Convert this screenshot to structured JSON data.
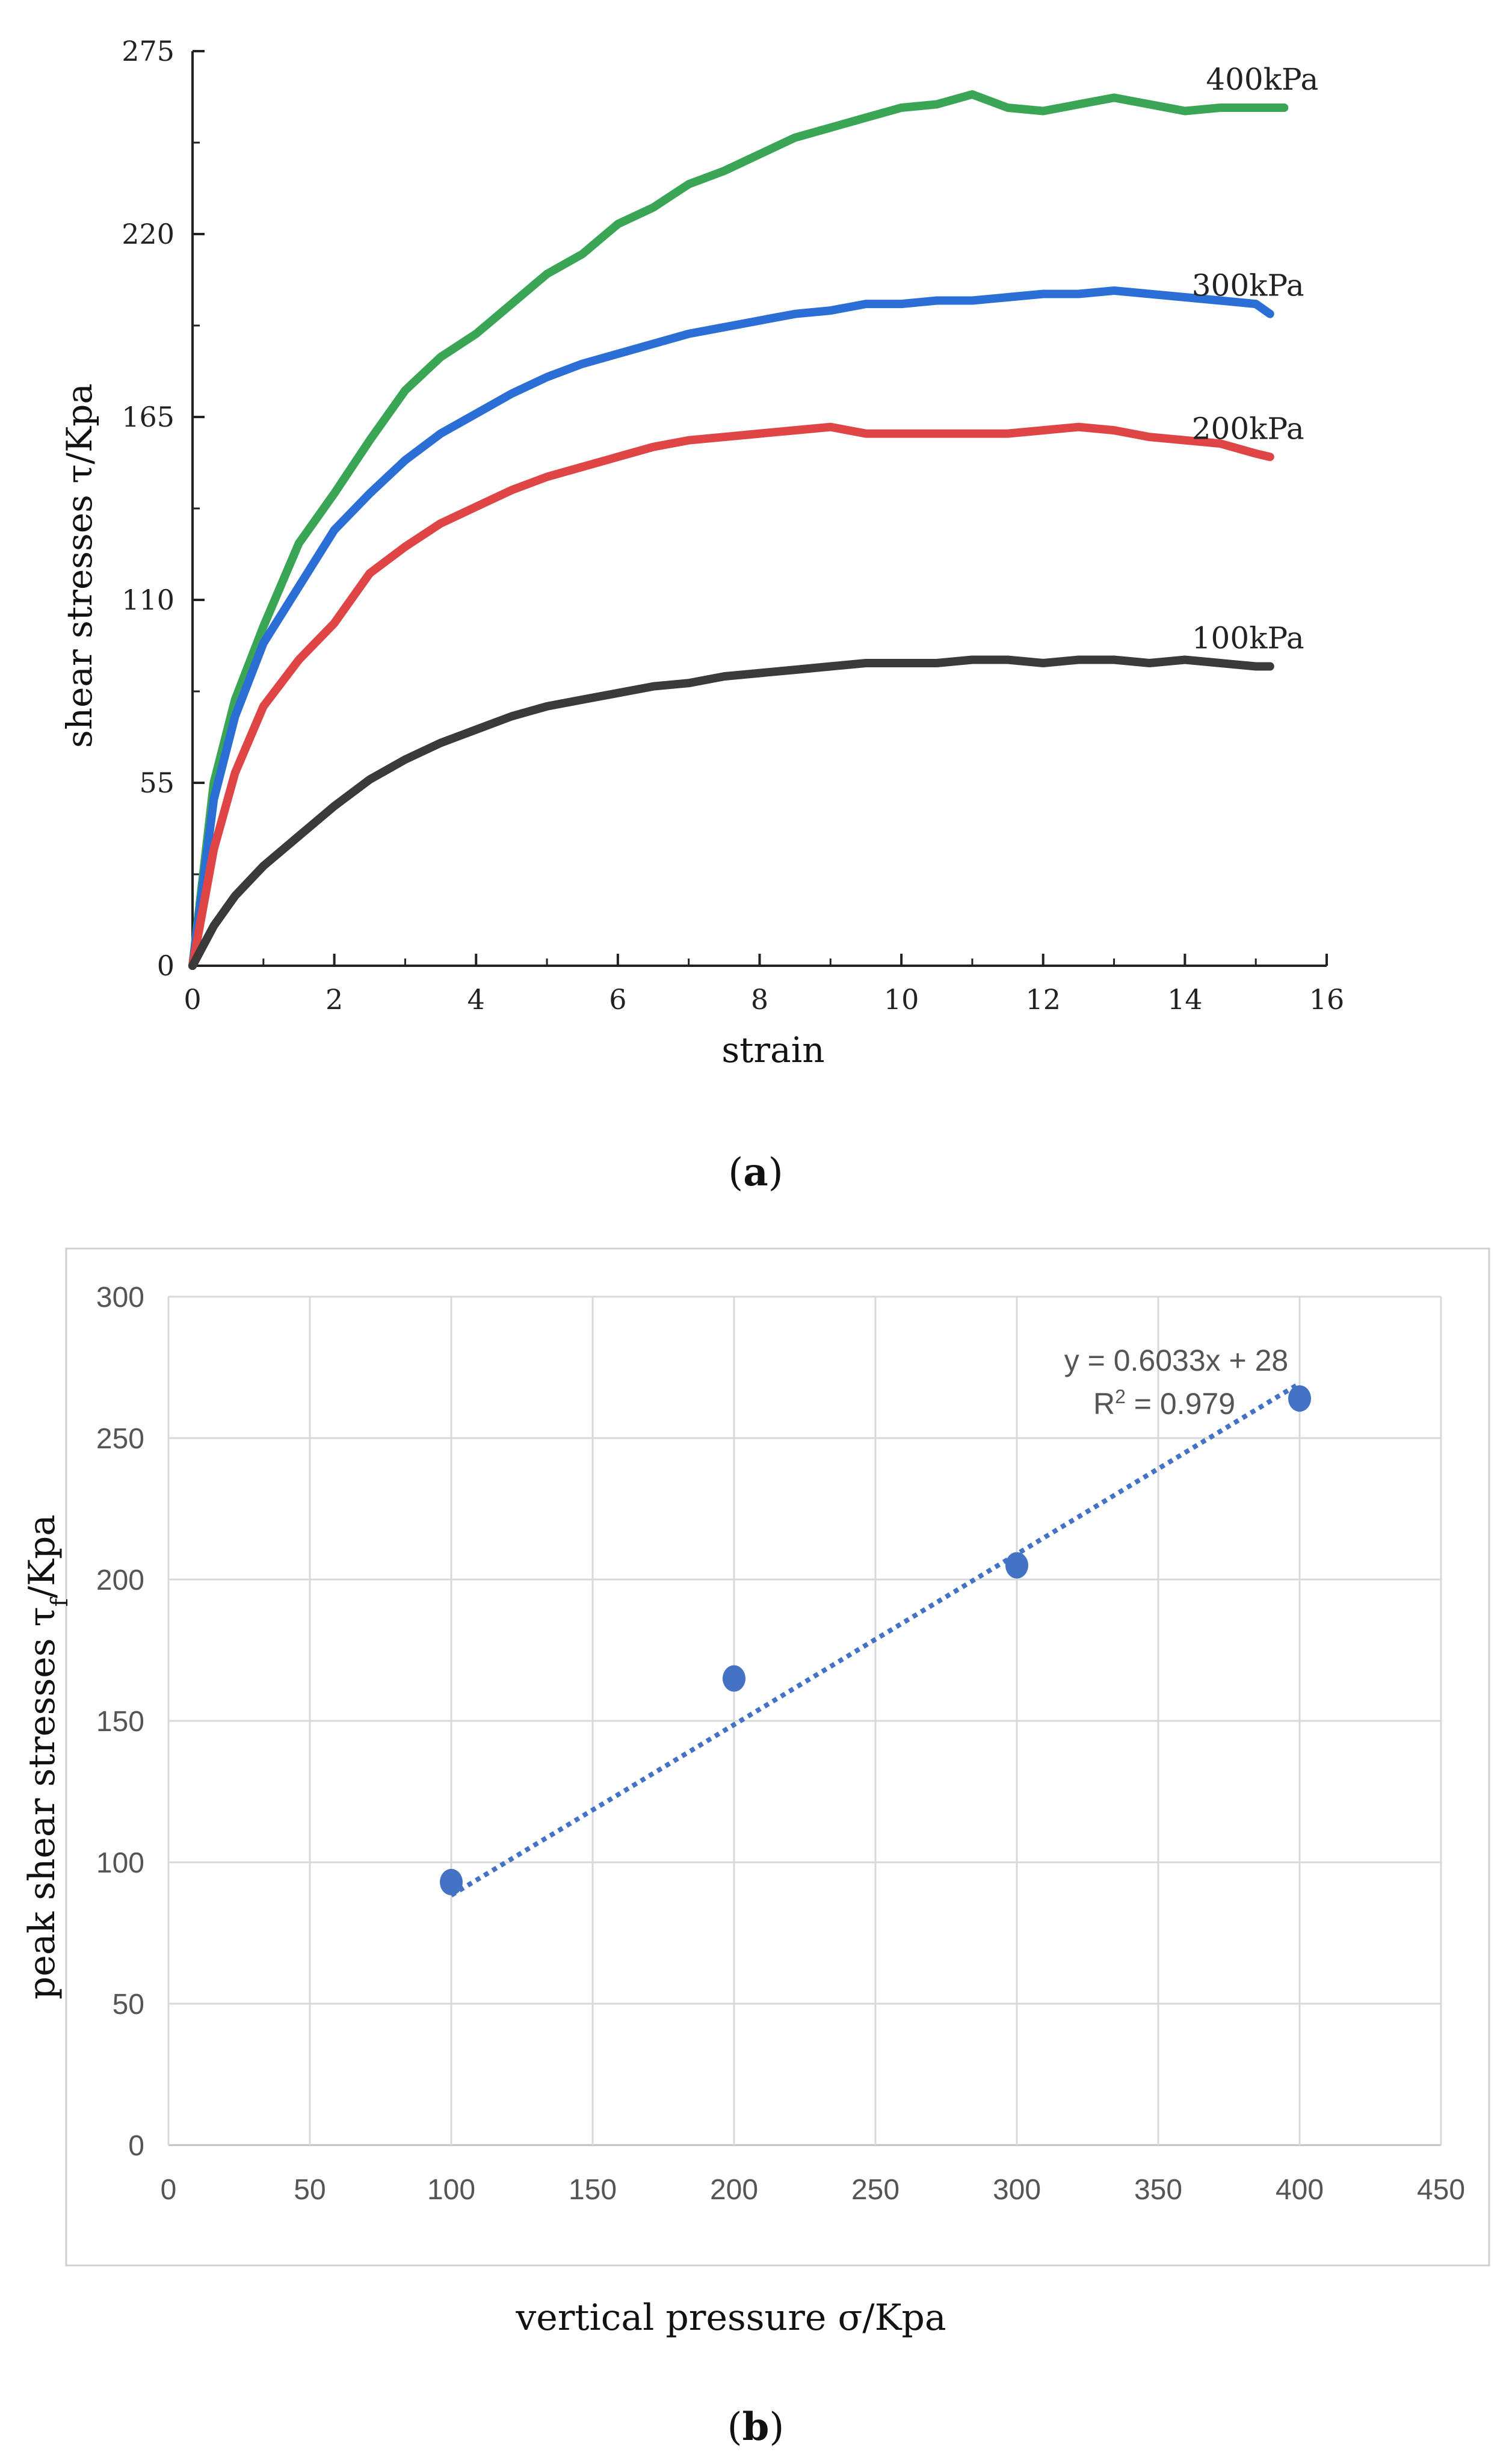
{
  "panel_a": {
    "caption_letter": "a",
    "chart_data": {
      "type": "line",
      "xlabel": "strain",
      "ylabel": "shear stresses τ/Kpa",
      "xlim": [
        0,
        16
      ],
      "ylim": [
        0,
        275
      ],
      "xticks": [
        0,
        2,
        4,
        6,
        8,
        10,
        12,
        14,
        16
      ],
      "yticks": [
        0,
        55,
        110,
        165,
        220,
        275
      ],
      "series": [
        {
          "name": "400kPa",
          "color": "#3aa655",
          "x": [
            0,
            0.3,
            0.6,
            1.0,
            1.5,
            2.0,
            2.5,
            3.0,
            3.5,
            4.0,
            4.5,
            5.0,
            5.5,
            6.0,
            6.5,
            7.0,
            7.5,
            8.0,
            8.5,
            9.0,
            9.5,
            10.0,
            10.5,
            11.0,
            11.5,
            12.0,
            12.5,
            13.0,
            13.5,
            14.0,
            14.5,
            15.0,
            15.4
          ],
          "y": [
            0,
            55,
            80,
            102,
            127,
            142,
            158,
            173,
            183,
            190,
            199,
            208,
            214,
            223,
            228,
            235,
            239,
            244,
            249,
            252,
            255,
            258,
            259,
            262,
            258,
            257,
            259,
            261,
            259,
            257,
            258,
            258,
            258
          ]
        },
        {
          "name": "300kPa",
          "color": "#2b6fd6",
          "x": [
            0,
            0.3,
            0.6,
            1.0,
            1.5,
            2.0,
            2.5,
            3.0,
            3.5,
            4.0,
            4.5,
            5.0,
            5.5,
            6.0,
            6.5,
            7.0,
            7.5,
            8.0,
            8.5,
            9.0,
            9.5,
            10.0,
            10.5,
            11.0,
            11.5,
            12.0,
            12.5,
            13.0,
            13.5,
            14.0,
            14.5,
            15.0,
            15.2
          ],
          "y": [
            0,
            50,
            75,
            97,
            114,
            131,
            142,
            152,
            160,
            166,
            172,
            177,
            181,
            184,
            187,
            190,
            192,
            194,
            196,
            197,
            199,
            199,
            200,
            200,
            201,
            202,
            202,
            203,
            202,
            201,
            200,
            199,
            196
          ]
        },
        {
          "name": "200kPa",
          "color": "#e04545",
          "x": [
            0,
            0.3,
            0.6,
            1.0,
            1.5,
            2.0,
            2.5,
            3.0,
            3.5,
            4.0,
            4.5,
            5.0,
            5.5,
            6.0,
            6.5,
            7.0,
            7.5,
            8.0,
            8.5,
            9.0,
            9.5,
            10.0,
            10.5,
            11.0,
            11.5,
            12.0,
            12.5,
            13.0,
            13.5,
            14.0,
            14.5,
            15.0,
            15.2
          ],
          "y": [
            0,
            35,
            58,
            78,
            92,
            103,
            118,
            126,
            133,
            138,
            143,
            147,
            150,
            153,
            156,
            158,
            159,
            160,
            161,
            162,
            160,
            160,
            160,
            160,
            160,
            161,
            162,
            161,
            159,
            158,
            157,
            154,
            153
          ]
        },
        {
          "name": "100kPa",
          "color": "#3a3a3a",
          "x": [
            0,
            0.3,
            0.6,
            1.0,
            1.5,
            2.0,
            2.5,
            3.0,
            3.5,
            4.0,
            4.5,
            5.0,
            5.5,
            6.0,
            6.5,
            7.0,
            7.5,
            8.0,
            8.5,
            9.0,
            9.5,
            10.0,
            10.5,
            11.0,
            11.5,
            12.0,
            12.5,
            13.0,
            13.5,
            14.0,
            14.5,
            15.0,
            15.2
          ],
          "y": [
            0,
            12,
            21,
            30,
            39,
            48,
            56,
            62,
            67,
            71,
            75,
            78,
            80,
            82,
            84,
            85,
            87,
            88,
            89,
            90,
            91,
            91,
            91,
            92,
            92,
            91,
            92,
            92,
            91,
            92,
            91,
            90,
            90
          ]
        }
      ]
    }
  },
  "panel_b": {
    "caption_letter": "b",
    "chart_data": {
      "type": "scatter",
      "xlabel": "vertical pressure σ/Kpa",
      "ylabel_main": "peak shear stresses τ",
      "ylabel_sub": "f",
      "ylabel_tail": "/Kpa",
      "xlim": [
        0,
        450
      ],
      "ylim": [
        0,
        300
      ],
      "xticks": [
        0,
        50,
        100,
        150,
        200,
        250,
        300,
        350,
        400,
        450
      ],
      "yticks": [
        0,
        50,
        100,
        150,
        200,
        250,
        300
      ],
      "points": [
        {
          "x": 100,
          "y": 93
        },
        {
          "x": 200,
          "y": 165
        },
        {
          "x": 300,
          "y": 205
        },
        {
          "x": 400,
          "y": 264
        }
      ],
      "marker_color": "#4472c4",
      "trendline": {
        "slope": 0.6033,
        "intercept": 28,
        "x_range": [
          100,
          400
        ],
        "color": "#4472c4",
        "equation": "y = 0.6033x + 28",
        "r2_prefix": "R",
        "r2_sup": "2",
        "r2_suffix": " = 0.979"
      }
    }
  }
}
